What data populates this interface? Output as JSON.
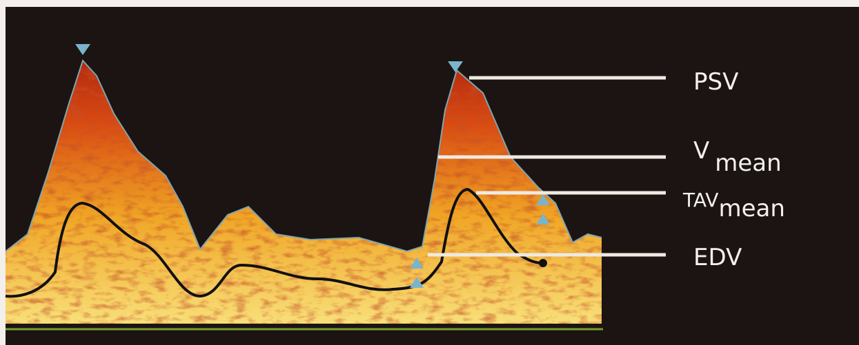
{
  "labels": [
    {
      "text": "PSV"
    },
    {
      "text": "V",
      "subscript": "mean"
    },
    {
      "text": "TAV",
      "subscript": "mean"
    },
    {
      "text": "EDV"
    }
  ]
}
